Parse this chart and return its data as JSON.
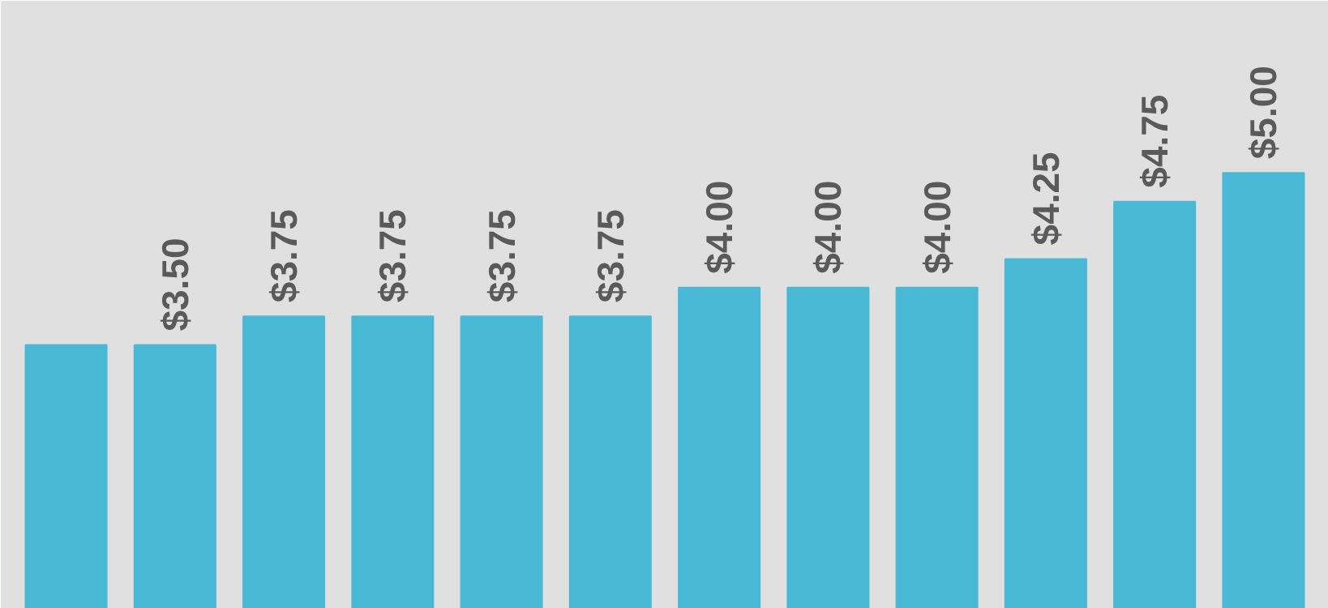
{
  "chart_data": {
    "type": "bar",
    "categories": [
      null,
      null,
      null,
      null,
      null,
      null,
      null,
      null,
      null,
      null,
      null,
      null
    ],
    "values": [
      3.5,
      3.5,
      3.75,
      3.75,
      3.75,
      3.75,
      4.0,
      4.0,
      4.0,
      4.25,
      4.75,
      5.0
    ],
    "value_labels": [
      null,
      "$3.50",
      "$3.75",
      "$3.75",
      "$3.75",
      "$3.75",
      "$4.00",
      "$4.00",
      "$4.00",
      "$4.25",
      "$4.75",
      "$5.00"
    ],
    "color": "#4ab9d6",
    "ylim": [
      1.2,
      6.5
    ]
  }
}
